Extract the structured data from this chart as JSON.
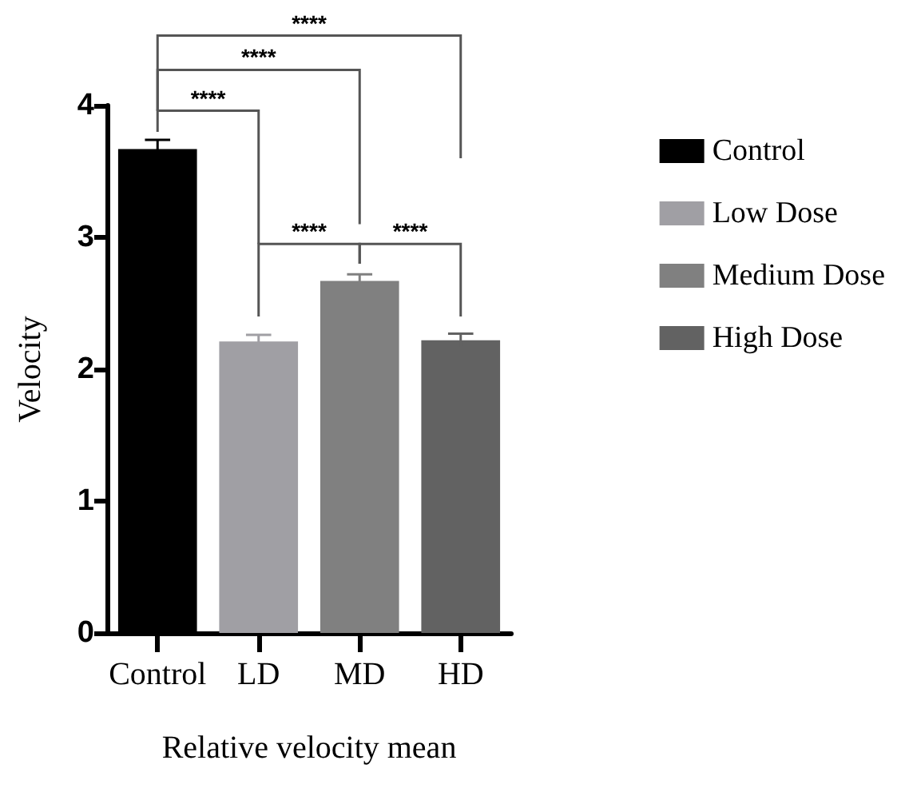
{
  "chart_data": {
    "type": "bar",
    "xlabel": "Relative velocity mean",
    "ylabel": "Velocity",
    "categories": [
      "Control",
      "LD",
      "MD",
      "HD"
    ],
    "series": [
      {
        "name": "Control",
        "color": "#000000",
        "values": [
          3.67,
          null,
          null,
          null
        ],
        "errors": [
          0.07,
          null,
          null,
          null
        ]
      },
      {
        "name": "Low Dose",
        "color": "#a09fa4",
        "values": [
          null,
          2.21,
          null,
          null
        ],
        "errors": [
          null,
          0.05,
          null,
          null
        ]
      },
      {
        "name": "Medium Dose",
        "color": "#808080",
        "values": [
          null,
          null,
          2.67,
          null
        ],
        "errors": [
          null,
          null,
          0.05,
          null
        ]
      },
      {
        "name": "High Dose",
        "color": "#626262",
        "values": [
          null,
          null,
          null,
          2.22
        ],
        "errors": [
          null,
          null,
          null,
          0.05
        ]
      }
    ],
    "ylim": [
      0,
      4
    ],
    "yticks": [
      0,
      1,
      2,
      3,
      4
    ],
    "grid": false,
    "legend": "right",
    "annotations": [
      "****",
      "****",
      "****",
      "****",
      "****"
    ]
  }
}
